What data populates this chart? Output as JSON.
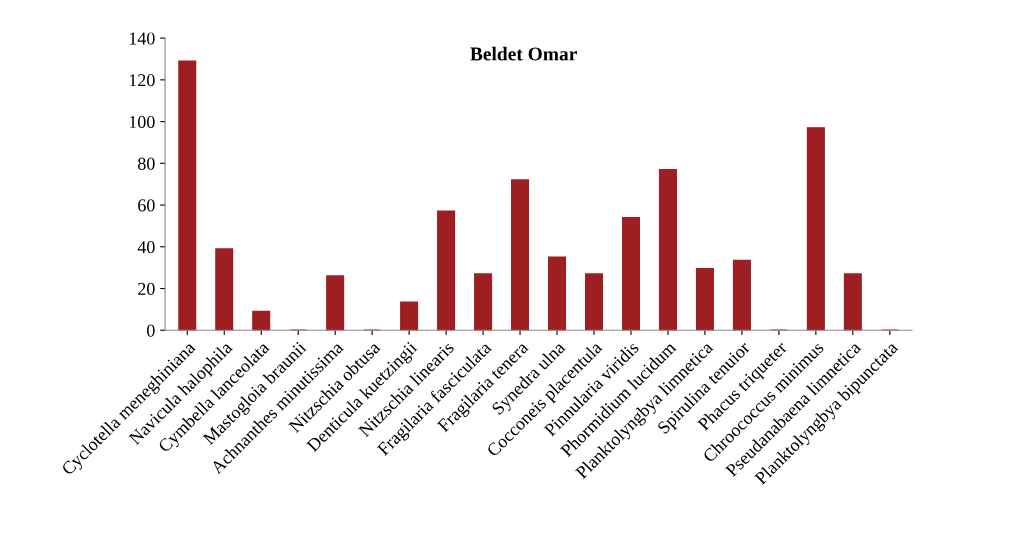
{
  "chart_data": {
    "type": "bar",
    "title": "Beldet Omar",
    "categories": [
      "Cyclotella meneghiniana",
      "Navicula halophila",
      "Cymbella lanceolata",
      "Mastogloia braunii",
      "Achnanthes minutissima",
      "Nitzschia obtusa",
      "Denticula kuetzingii",
      "Nitzschia linearis",
      "Fragilaria fasciculata",
      "Fragilaria tenera",
      "Synedra ulna",
      "Cocconeis placentula",
      "Pinnularia viridis",
      "Phormidium lucidum",
      "Planktolyngbya limnetica",
      "Spirulina tenuior",
      "Phacus triqueter",
      "Chroococcus minimus",
      "Pseudanabaena limnetica",
      "Planktolyngbya bipunctata"
    ],
    "values": [
      129,
      39,
      9,
      0,
      26,
      0,
      13.5,
      57,
      27,
      72,
      35,
      27,
      54,
      77,
      29.5,
      33.5,
      0,
      97,
      27,
      0
    ],
    "color": "#9e1f22",
    "ylim": [
      0,
      140
    ],
    "yticks": [
      0,
      20,
      40,
      60,
      80,
      100,
      120,
      140
    ],
    "grid": false
  }
}
